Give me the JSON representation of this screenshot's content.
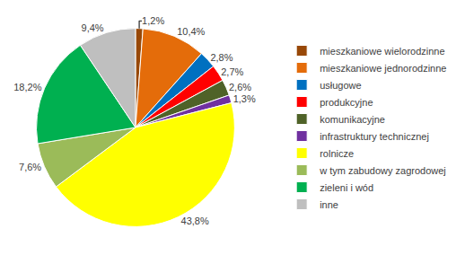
{
  "chart_data": {
    "type": "pie",
    "categories": [
      "mieszkaniowe wielorodzinne",
      "mieszkaniowe jednorodzinne",
      "usługowe",
      "produkcyjne",
      "komunikacyjne",
      "infrastruktury technicznej",
      "rolnicze",
      "w tym zabudowy zagrodowej",
      "zieleni i wód",
      "inne"
    ],
    "values": [
      1.2,
      10.4,
      2.8,
      2.7,
      2.6,
      1.3,
      43.8,
      7.6,
      18.2,
      9.4
    ],
    "value_labels": [
      "1,2%",
      "10,4%",
      "2,8%",
      "2,7%",
      "2,6%",
      "1,3%",
      "43,8%",
      "7,6%",
      "18,2%",
      "9,4%"
    ],
    "colors": [
      "#984807",
      "#E46C0A",
      "#0070C0",
      "#FF0000",
      "#4F6228",
      "#7030A0",
      "#FFFF00",
      "#9BBB59",
      "#00B050",
      "#BFBFBF"
    ],
    "data_labels": true,
    "legend": "right"
  }
}
